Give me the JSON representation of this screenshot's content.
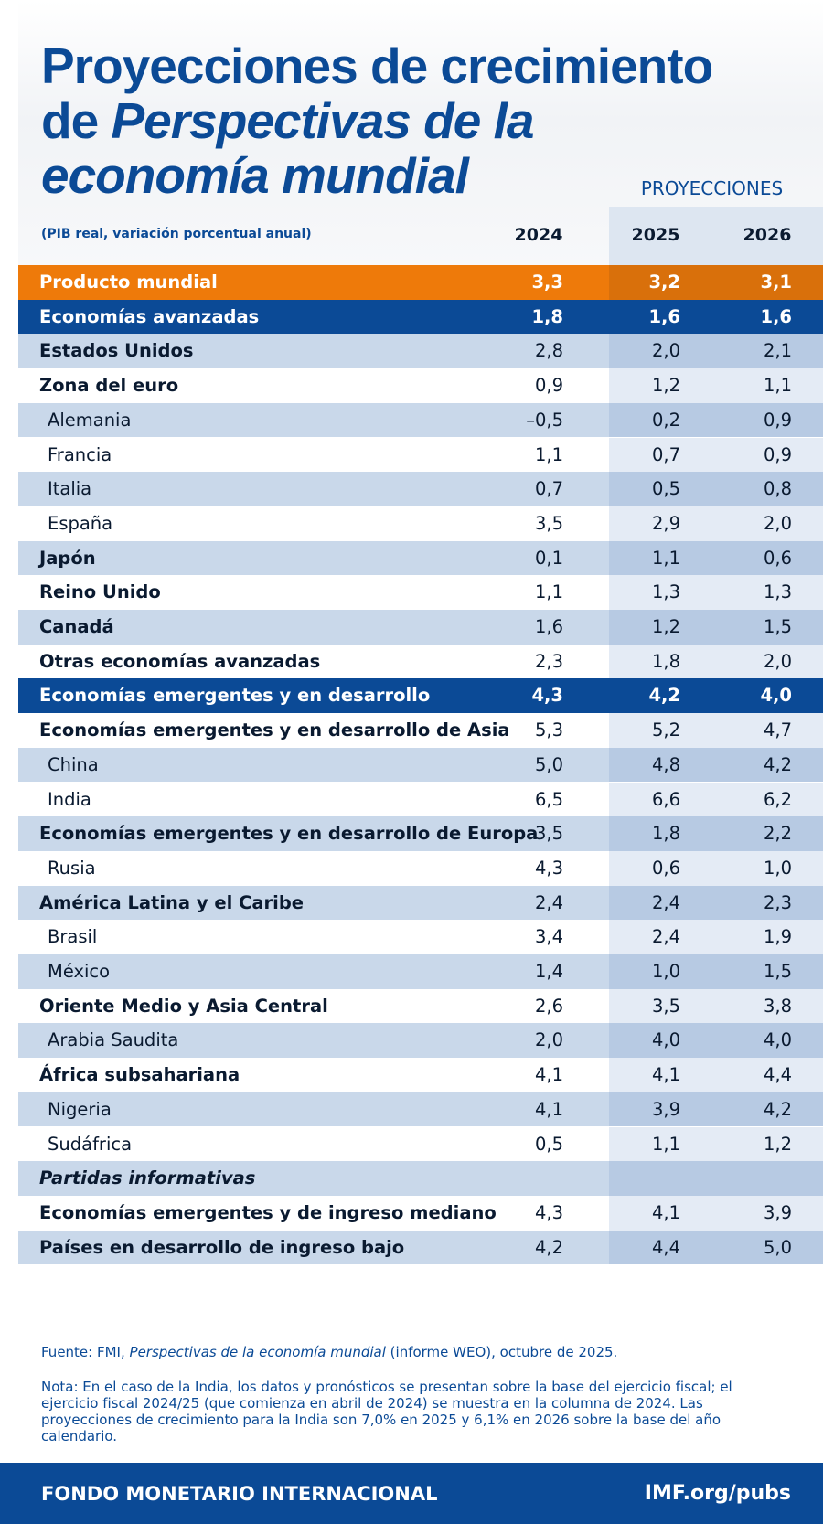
{
  "title": [
    "Proyecciones de crecimiento",
    "de",
    "Perspectivas de la",
    "economía mundial"
  ],
  "subtitle": "(PIB real, variación porcentual anual)",
  "projections_label": "PROYECCIONES",
  "columns": [
    "2024",
    "2025",
    "2026"
  ],
  "rows": [
    {
      "label": "Producto mundial",
      "values": [
        "3,3",
        "3,2",
        "3,1"
      ]
    },
    {
      "label": "Economías avanzadas",
      "values": [
        "1,8",
        "1,6",
        "1,6"
      ]
    },
    {
      "label": "Estados Unidos",
      "values": [
        "2,8",
        "2,0",
        "2,1"
      ]
    },
    {
      "label": "Zona del euro",
      "values": [
        "0,9",
        "1,2",
        "1,1"
      ]
    },
    {
      "label": "Alemania",
      "values": [
        "–0,5",
        "0,2",
        "0,9"
      ]
    },
    {
      "label": "Francia",
      "values": [
        "1,1",
        "0,7",
        "0,9"
      ]
    },
    {
      "label": "Italia",
      "values": [
        "0,7",
        "0,5",
        "0,8"
      ]
    },
    {
      "label": "España",
      "values": [
        "3,5",
        "2,9",
        "2,0"
      ]
    },
    {
      "label": "Japón",
      "values": [
        "0,1",
        "1,1",
        "0,6"
      ]
    },
    {
      "label": "Reino Unido",
      "values": [
        "1,1",
        "1,3",
        "1,3"
      ]
    },
    {
      "label": "Canadá",
      "values": [
        "1,6",
        "1,2",
        "1,5"
      ]
    },
    {
      "label": "Otras economías avanzadas",
      "values": [
        "2,3",
        "1,8",
        "2,0"
      ]
    },
    {
      "label": "Economías emergentes y en desarrollo",
      "values": [
        "4,3",
        "4,2",
        "4,0"
      ]
    },
    {
      "label": "Economías emergentes y en desarrollo de Asia",
      "values": [
        "5,3",
        "5,2",
        "4,7"
      ]
    },
    {
      "label": "China",
      "values": [
        "5,0",
        "4,8",
        "4,2"
      ]
    },
    {
      "label": "India",
      "values": [
        "6,5",
        "6,6",
        "6,2"
      ]
    },
    {
      "label": "Economías emergentes y en desarrollo de Europa",
      "values": [
        "3,5",
        "1,8",
        "2,2"
      ]
    },
    {
      "label": "Rusia",
      "values": [
        "4,3",
        "0,6",
        "1,0"
      ]
    },
    {
      "label": "América Latina y el Caribe",
      "values": [
        "2,4",
        "2,4",
        "2,3"
      ]
    },
    {
      "label": "Brasil",
      "values": [
        "3,4",
        "2,4",
        "1,9"
      ]
    },
    {
      "label": "México",
      "values": [
        "1,4",
        "1,0",
        "1,5"
      ]
    },
    {
      "label": "Oriente Medio y Asia Central",
      "values": [
        "2,6",
        "3,5",
        "3,8"
      ]
    },
    {
      "label": "Arabia Saudita",
      "values": [
        "2,0",
        "4,0",
        "4,0"
      ]
    },
    {
      "label": "África subsahariana",
      "values": [
        "4,1",
        "4,1",
        "4,4"
      ]
    },
    {
      "label": "Nigeria",
      "values": [
        "4,1",
        "3,9",
        "4,2"
      ]
    },
    {
      "label": "Sudáfrica",
      "values": [
        "0,5",
        "1,1",
        "1,2"
      ]
    }
  ],
  "memo": {
    "heading": "Partidas informativas",
    "rows": [
      {
        "label": "Economías emergentes y de ingreso mediano",
        "values": [
          "4,3",
          "4,1",
          "3,9"
        ]
      },
      {
        "label": "Países en desarrollo de ingreso bajo",
        "values": [
          "4,2",
          "4,4",
          "5,0"
        ]
      }
    ]
  },
  "source": [
    "Fuente: FMI,",
    "Perspectivas de la economía mundial",
    "(informe WEO), octubre de 2025."
  ],
  "note": "Nota: En el caso de la India, los datos y pronósticos se presentan sobre la base del ejercicio fiscal; el ejercicio fiscal 2024/25 (que comienza en abril de 2024) se muestra en la columna de 2024. Las proyecciones de crecimiento para la India son 7,0% en 2025 y 6,1% en 2026 sobre la base del año calendario.",
  "footer": {
    "org": "FONDO MONETARIO INTERNACIONAL",
    "site": "IMF.org/pubs"
  }
}
